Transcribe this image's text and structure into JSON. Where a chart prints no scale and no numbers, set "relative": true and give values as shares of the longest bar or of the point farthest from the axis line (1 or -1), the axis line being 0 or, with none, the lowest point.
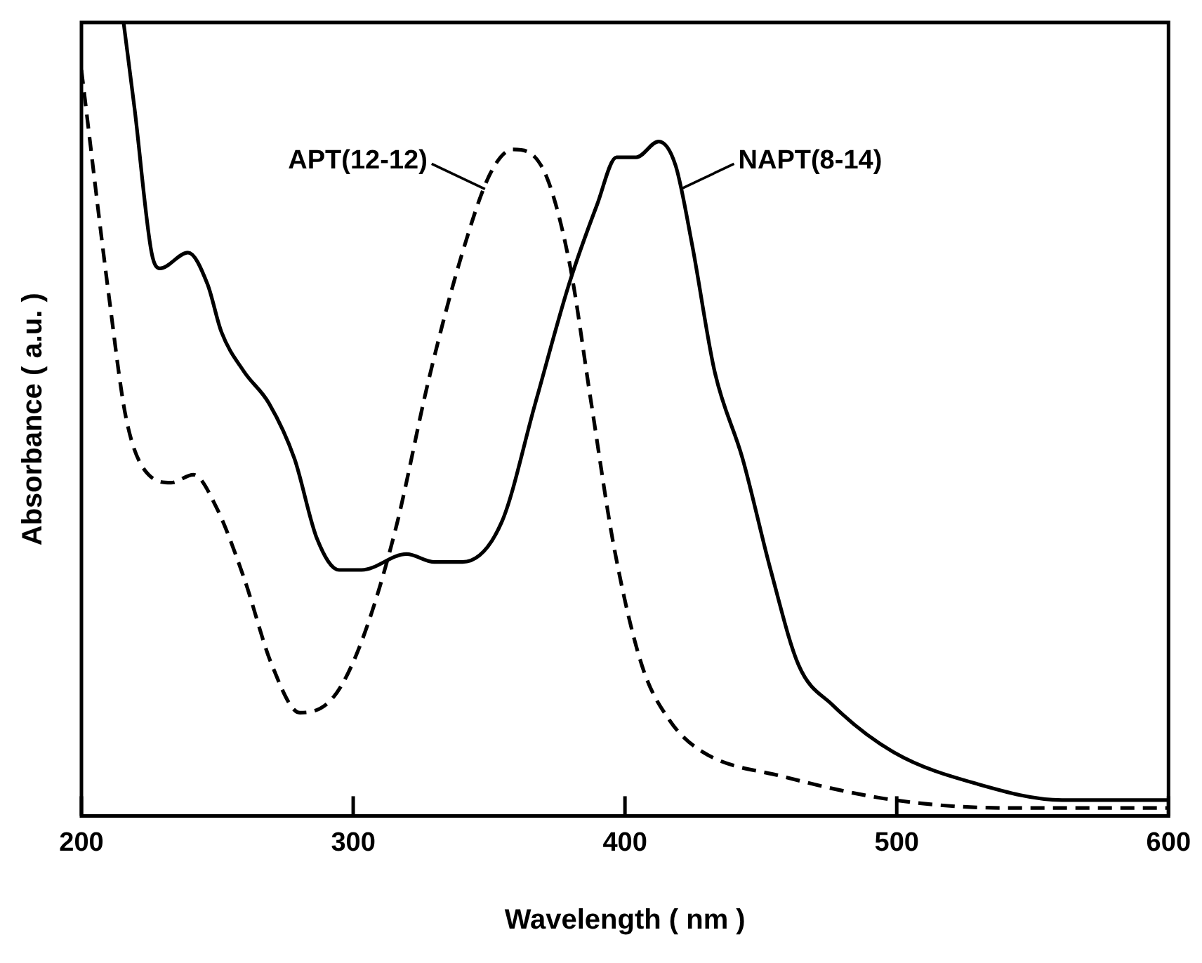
{
  "chart_data": {
    "type": "line",
    "xlabel": "Wavelength ( nm )",
    "ylabel": "Absorbance ( a.u. )",
    "relative": true,
    "xlim": [
      200,
      600
    ],
    "xticks": [
      200,
      300,
      400,
      500,
      600
    ],
    "grid": false,
    "legend": false,
    "marker": "none",
    "series": [
      {
        "color": "#000000",
        "line_style": "solid",
        "x": [
          215.5,
          219.6,
          225.8,
          228.9,
          239.2,
          246.4,
          251.5,
          259.8,
          269,
          278.4,
          286.6,
          294.8,
          303.1,
          319.6,
          329.9,
          340.2,
          354.6,
          367,
          379.4,
          389.7,
          396.9,
          404.1,
          412.4,
          418.6,
          424.7,
          433,
          443.3,
          453.6,
          463.9,
          476.3,
          499,
          529.9,
          560.8,
          600
        ],
        "values": [
          1.0,
          0.89,
          0.71,
          0.69,
          0.71,
          0.67,
          0.61,
          0.56,
          0.52,
          0.45,
          0.35,
          0.31,
          0.31,
          0.33,
          0.32,
          0.32,
          0.37,
          0.52,
          0.67,
          0.77,
          0.83,
          0.83,
          0.85,
          0.82,
          0.72,
          0.56,
          0.45,
          0.31,
          0.19,
          0.14,
          0.08,
          0.04,
          0.02,
          0.02
        ]
      },
      {
        "color": "#000000",
        "line_style": "dashed",
        "x": [
          200,
          210.3,
          216.5,
          224.7,
          233,
          241.2,
          249.5,
          259.8,
          270.1,
          280.4,
          292.8,
          303.1,
          315.5,
          327.8,
          340.2,
          350.5,
          358.8,
          369.1,
          379.4,
          387.6,
          395.9,
          406.2,
          416.5,
          428.9,
          457.7,
          499,
          540.2,
          600
        ],
        "values": [
          0.94,
          0.65,
          0.5,
          0.43,
          0.42,
          0.43,
          0.39,
          0.3,
          0.19,
          0.13,
          0.15,
          0.22,
          0.36,
          0.55,
          0.71,
          0.81,
          0.84,
          0.82,
          0.7,
          0.52,
          0.34,
          0.19,
          0.12,
          0.08,
          0.05,
          0.02,
          0.01,
          0.01
        ]
      }
    ],
    "annotations": [
      {
        "text": "APT(12-12)",
        "x": 348.5,
        "y": 0.79
      },
      {
        "text": "NAPT(8-14)",
        "x": 420.5,
        "y": 0.79
      }
    ]
  }
}
